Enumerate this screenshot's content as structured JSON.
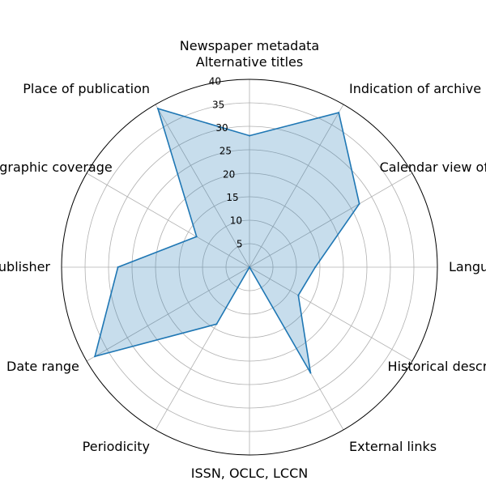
{
  "chart_data": {
    "type": "radar",
    "title": "Newspaper metadata",
    "categories": [
      "Alternative titles",
      "Indication of archive holder",
      "Calendar view of issues",
      "Language",
      "Historical description",
      "External links",
      "ISSN, OCLC, LCCN",
      "Periodicity",
      "Date range",
      "Publisher",
      "Geographic coverage",
      "Place of publication"
    ],
    "series": [
      {
        "values": [
          28,
          38,
          27,
          14,
          12,
          26,
          0,
          14,
          38,
          28,
          13,
          39
        ]
      }
    ],
    "radial_ticks": [
      5,
      10,
      15,
      20,
      25,
      30,
      35,
      40
    ],
    "rlim": [
      0,
      40
    ],
    "grid": true,
    "legend": "none",
    "colors": {
      "line": "#1f77b4",
      "fill": "#1f77b4",
      "grid": "#b0b0b0",
      "frame": "#000000"
    }
  }
}
